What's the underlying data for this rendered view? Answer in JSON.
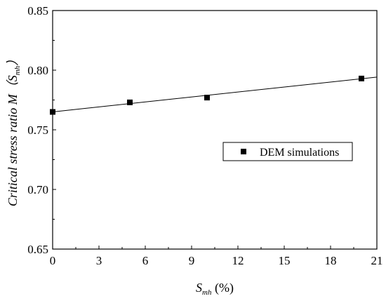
{
  "chart_data": {
    "type": "scatter",
    "title": "",
    "xlabel": {
      "main": "S",
      "sub": "mh",
      "suffix": " (%)"
    },
    "ylabel": {
      "prefix": "Critical stress ratio M（S",
      "sub": "mh",
      "suffix": "）"
    },
    "xlim": [
      0,
      21
    ],
    "ylim": [
      0.65,
      0.85
    ],
    "xticks": [
      0,
      3,
      6,
      9,
      12,
      15,
      18,
      21
    ],
    "xtick_labels": [
      "0",
      "3",
      "6",
      "9",
      "12",
      "15",
      "18",
      "21"
    ],
    "yticks": [
      0.65,
      0.7,
      0.75,
      0.8,
      0.85
    ],
    "ytick_labels": [
      "0.65",
      "0.70",
      "0.75",
      "0.80",
      "0.85"
    ],
    "grid": false,
    "legend_position": "right-middle",
    "series": [
      {
        "name": "DEM simulations",
        "marker": "square",
        "color": "#000000",
        "x": [
          0,
          5,
          10,
          20
        ],
        "y": [
          0.765,
          0.773,
          0.777,
          0.793
        ]
      }
    ],
    "fit_line": {
      "x": [
        0,
        21
      ],
      "y": [
        0.765,
        0.7942
      ],
      "color": "#000000"
    }
  }
}
